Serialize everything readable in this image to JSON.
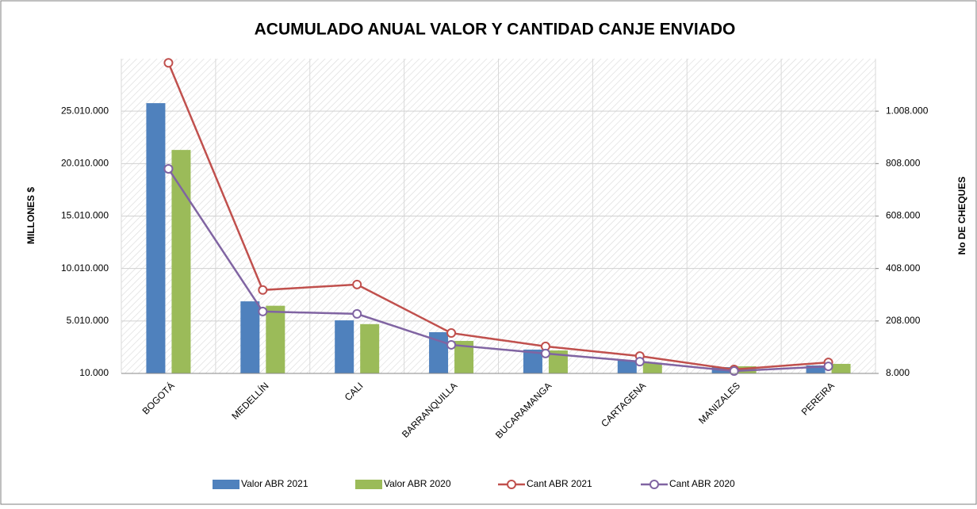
{
  "chart_data": {
    "type": "bar_line",
    "title": "ACUMULADO ANUAL VALOR Y CANTIDAD CANJE ENVIADO",
    "y_label": "MILLONES $",
    "y2_label": "No DE CHEQUES",
    "categories": [
      "BOGOTÁ",
      "MEDELLÍN",
      "CALI",
      "BARRANQUILLA",
      "BUCARAMANGA",
      "CARTAGENA",
      "MANIZALES",
      "PEREIRA"
    ],
    "series": [
      {
        "name": "Valor ABR 2021",
        "type": "bar",
        "color": "#4f81bd",
        "values": [
          25770000,
          6880000,
          5070000,
          3940000,
          2280000,
          1220000,
          610000,
          770000
        ]
      },
      {
        "name": "Valor ABR 2020",
        "type": "bar",
        "color": "#9bbb59",
        "values": [
          21310000,
          6460000,
          4710000,
          3110000,
          2200000,
          1000000,
          690000,
          920000
        ]
      },
      {
        "name": "Cant ABR 2021",
        "type": "line",
        "axis": "y2",
        "color": "#c0504d",
        "values": [
          1192000,
          326000,
          347000,
          162000,
          111000,
          74000,
          23000,
          50000
        ]
      },
      {
        "name": "Cant ABR 2020",
        "type": "line",
        "axis": "y2",
        "color": "#8064a2",
        "values": [
          788000,
          244000,
          235000,
          117000,
          84000,
          53000,
          17000,
          35000
        ]
      }
    ],
    "ylim": [
      10000,
      30010000
    ],
    "yticks": [
      {
        "value": 10000,
        "label": "10.000"
      },
      {
        "value": 5010000,
        "label": "5.010.000"
      },
      {
        "value": 10010000,
        "label": "10.010.000"
      },
      {
        "value": 15010000,
        "label": "15.010.000"
      },
      {
        "value": 20010000,
        "label": "20.010.000"
      },
      {
        "value": 25010000,
        "label": "25.010.000"
      }
    ],
    "y2lim": [
      8000,
      1208000
    ],
    "y2ticks": [
      {
        "value": 8000,
        "label": "8.000"
      },
      {
        "value": 208000,
        "label": "208.000"
      },
      {
        "value": 408000,
        "label": "408.000"
      },
      {
        "value": 608000,
        "label": "608.000"
      },
      {
        "value": 808000,
        "label": "808.000"
      },
      {
        "value": 1008000,
        "label": "1.008.000"
      }
    ],
    "grid": true,
    "legend": "bottom"
  }
}
